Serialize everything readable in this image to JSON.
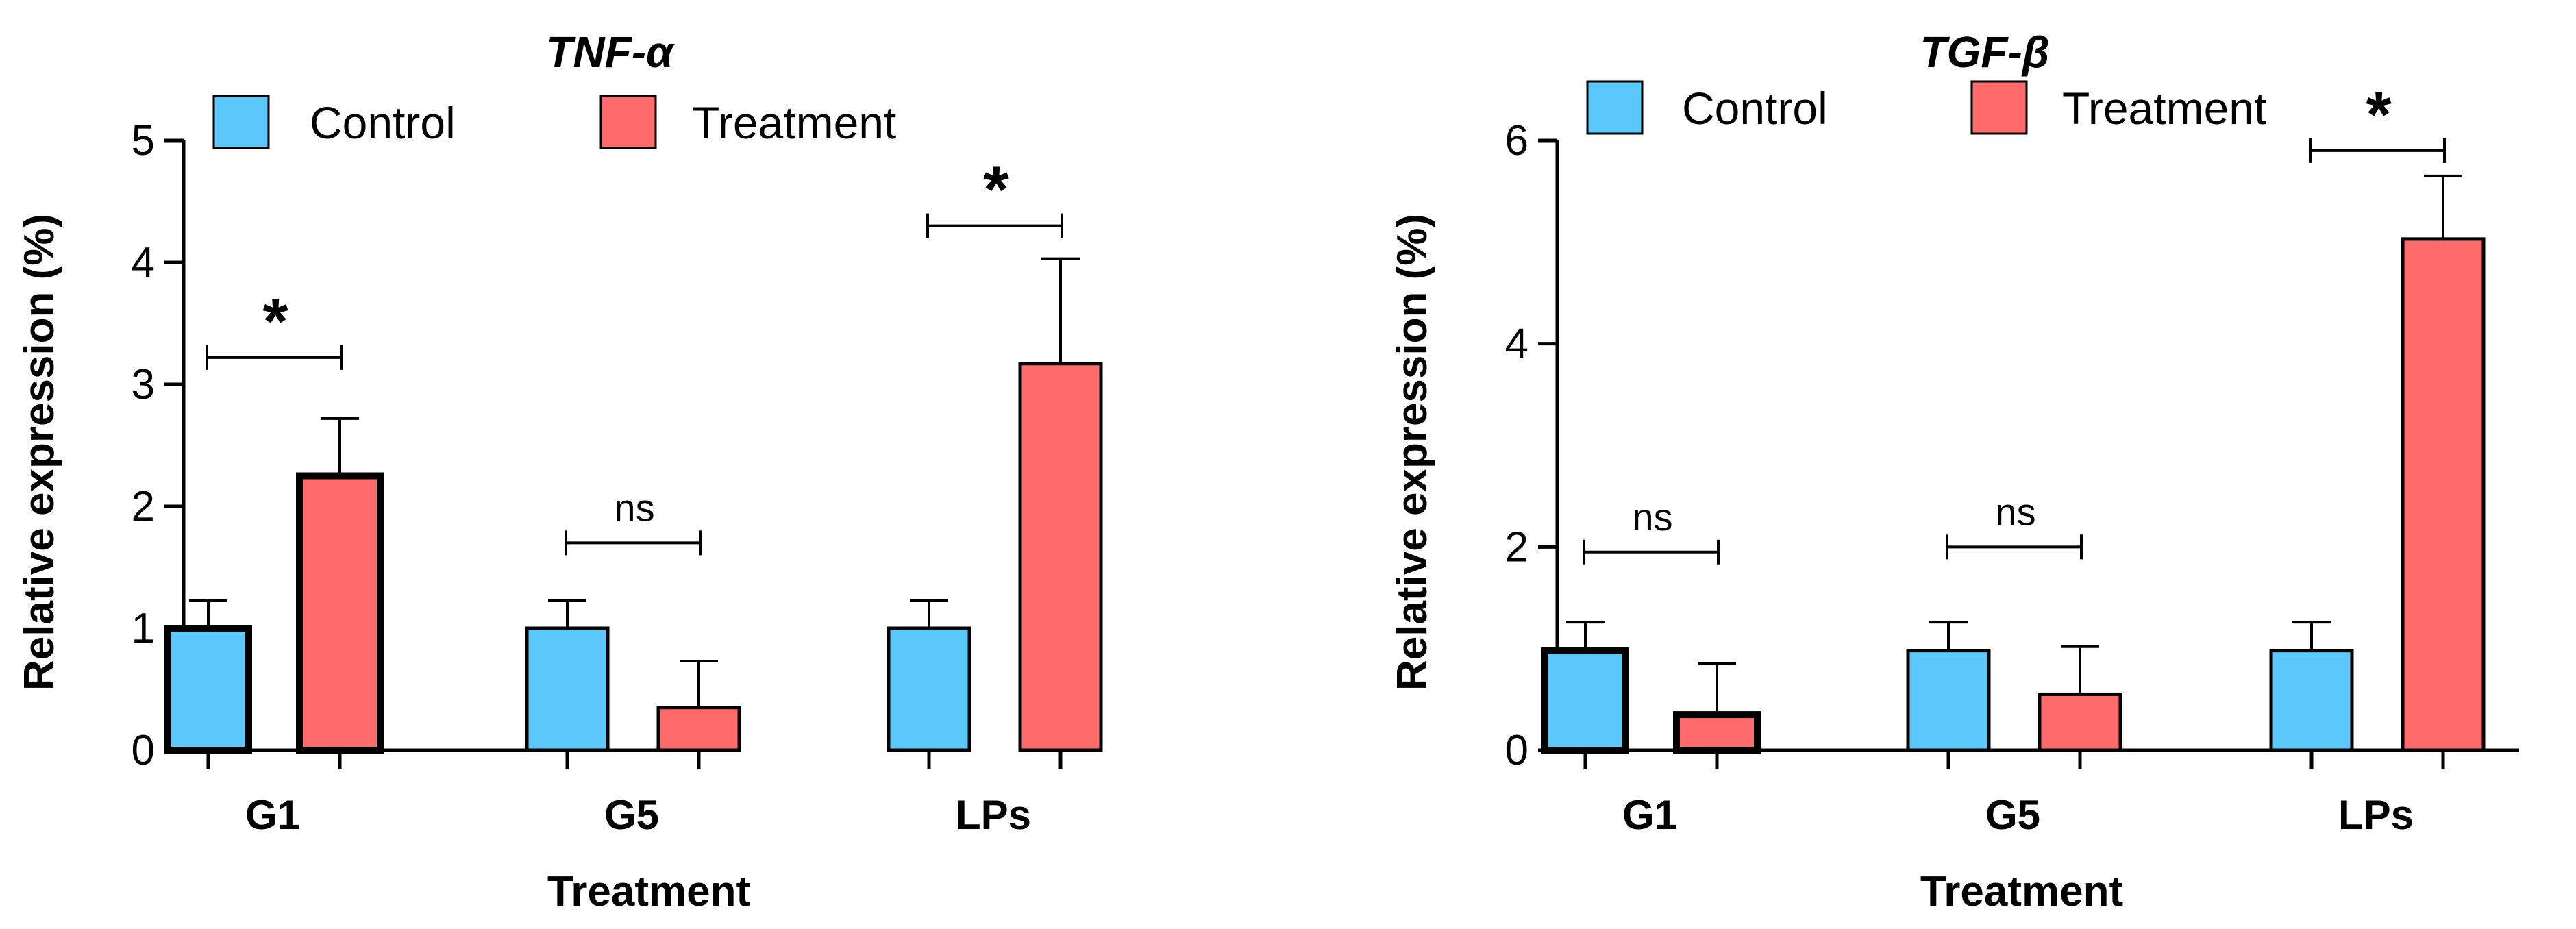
{
  "colors": {
    "control": "#5AC8FA",
    "treatment": "#FF6B6B",
    "stroke": "#000000"
  },
  "chart_data": [
    {
      "type": "bar",
      "title": "TNF-α",
      "xlabel": "Treatment",
      "ylabel": "Relative expression (%)",
      "ylim": [
        0,
        5
      ],
      "yticks": [
        0,
        1,
        2,
        3,
        4,
        5
      ],
      "categories": [
        "G1",
        "G5",
        "LPs"
      ],
      "series": [
        {
          "name": "Control",
          "values": [
            1.0,
            1.0,
            1.0
          ],
          "errors": [
            0.23,
            0.23,
            0.23
          ]
        },
        {
          "name": "Treatment",
          "values": [
            2.25,
            0.35,
            3.17
          ],
          "errors": [
            0.47,
            0.38,
            0.86
          ]
        }
      ],
      "significance": [
        {
          "category": "G1",
          "label": "*",
          "y": 3.22
        },
        {
          "category": "G5",
          "label": "ns",
          "y": 1.7
        },
        {
          "category": "LPs",
          "label": "*",
          "y": 4.3
        }
      ],
      "emphasized_bars": [
        [
          0,
          0
        ],
        [
          1,
          0
        ]
      ]
    },
    {
      "type": "bar",
      "title": "TGF-β",
      "xlabel": "Treatment",
      "ylabel": "Relative expression (%)",
      "ylim": [
        0,
        6
      ],
      "yticks": [
        0,
        2,
        4,
        6
      ],
      "categories": [
        "G1",
        "G5",
        "LPs"
      ],
      "series": [
        {
          "name": "Control",
          "values": [
            0.98,
            0.98,
            0.98
          ],
          "errors": [
            0.28,
            0.28,
            0.28
          ]
        },
        {
          "name": "Treatment",
          "values": [
            0.35,
            0.55,
            5.03
          ],
          "errors": [
            0.5,
            0.47,
            0.62
          ]
        }
      ],
      "significance": [
        {
          "category": "G1",
          "label": "ns",
          "y": 1.95
        },
        {
          "category": "G5",
          "label": "ns",
          "y": 2.0
        },
        {
          "category": "LPs",
          "label": "*",
          "y": 5.9
        }
      ],
      "emphasized_bars": [
        [
          0,
          0
        ],
        [
          1,
          0
        ]
      ]
    }
  ]
}
